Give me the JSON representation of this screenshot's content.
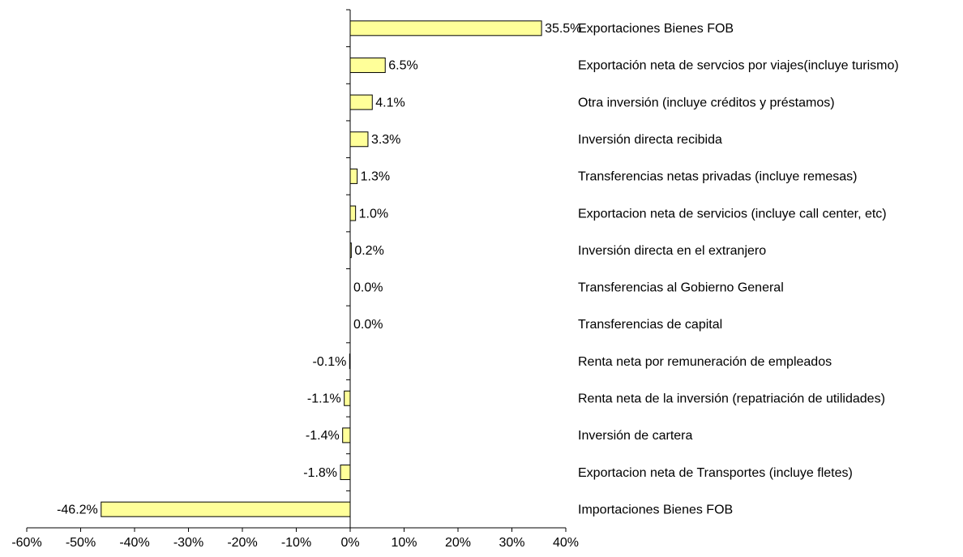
{
  "chart_data": {
    "type": "bar",
    "orientation": "horizontal",
    "categories": [
      "Exportaciones Bienes FOB",
      "Exportación neta de servcios por viajes(incluye turismo)",
      "Otra inversión (incluye créditos y préstamos)",
      "Inversión directa recibida",
      "Transferencias netas privadas (incluye remesas)",
      "Exportacion neta de servicios (incluye call center, etc)",
      "Inversión directa en el extranjero",
      "Transferencias al Gobierno General",
      "Transferencias de capital",
      "Renta neta por remuneración de empleados",
      "Renta neta de la inversión (repatriación de utilidades)",
      "Inversión de cartera",
      "Exportacion neta de Transportes (incluye fletes)",
      "Importaciones Bienes FOB"
    ],
    "values": [
      35.5,
      6.5,
      4.1,
      3.3,
      1.3,
      1.0,
      0.2,
      0.0,
      0.0,
      -0.1,
      -1.1,
      -1.4,
      -1.8,
      -46.2
    ],
    "value_labels": [
      "35.5%",
      "6.5%",
      "4.1%",
      "3.3%",
      "1.3%",
      "1.0%",
      "0.2%",
      "0.0%",
      "0.0%",
      "-0.1%",
      "-1.1%",
      "-1.4%",
      "-1.8%",
      "-46.2%"
    ],
    "color": "#ffff99",
    "xlim": [
      -60,
      40
    ],
    "xticks": [
      {
        "value": -60,
        "label": "-60%"
      },
      {
        "value": -50,
        "label": "-50%"
      },
      {
        "value": -40,
        "label": "-40%"
      },
      {
        "value": -30,
        "label": "-30%"
      },
      {
        "value": -20,
        "label": "-20%"
      },
      {
        "value": -10,
        "label": "-10%"
      },
      {
        "value": 0,
        "label": "0%"
      },
      {
        "value": 10,
        "label": "10%"
      },
      {
        "value": 20,
        "label": "20%"
      },
      {
        "value": 30,
        "label": "30%"
      },
      {
        "value": 40,
        "label": "40%"
      }
    ],
    "grid": false
  }
}
